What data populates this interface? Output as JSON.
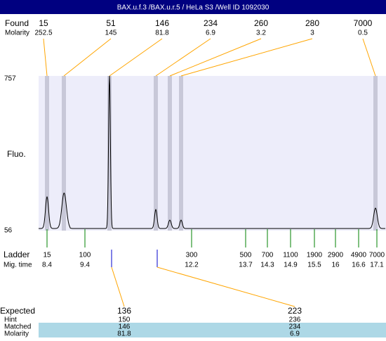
{
  "header": {
    "title": "BAX.u.f.3 /BAX.u.r.5 / HeLa S3 /Well ID 1092030"
  },
  "found": {
    "label": "Found",
    "molarity_label": "Molarity",
    "peaks": [
      {
        "size": 15,
        "molarity": 252.5
      },
      {
        "size": 51,
        "molarity": 145
      },
      {
        "size": 146,
        "molarity": 81.8
      },
      {
        "size": 234,
        "molarity": 6.9
      },
      {
        "size": 260,
        "molarity": 3.2
      },
      {
        "size": 280,
        "molarity": 3
      },
      {
        "size": 7000,
        "molarity": 0.5
      }
    ]
  },
  "y_axis": {
    "label": "Fluo.",
    "max": 757,
    "min": 56
  },
  "ladder": {
    "label": "Ladder",
    "time_label": "Mig. time",
    "items": [
      {
        "size": 15,
        "time": 8.4
      },
      {
        "size": 100,
        "time": 9.4
      },
      {
        "size": 300,
        "time": 12.2
      },
      {
        "size": 500,
        "time": 13.7
      },
      {
        "size": 700,
        "time": 14.3
      },
      {
        "size": 1100,
        "time": 14.9
      },
      {
        "size": 1900,
        "time": 15.5
      },
      {
        "size": 2900,
        "time": 16
      },
      {
        "size": 4900,
        "time": 16.6
      },
      {
        "size": 7000,
        "time": 17.1
      }
    ]
  },
  "expected": {
    "label": "Expected",
    "hint_label": "Hint",
    "matched_label": "Matched",
    "molarity_label": "Molarity",
    "items": [
      {
        "expected": 136,
        "hint": 150,
        "matched": 146,
        "molarity": 81.8
      },
      {
        "expected": 223,
        "hint": 236,
        "matched": 234,
        "molarity": 6.9
      }
    ]
  }
}
